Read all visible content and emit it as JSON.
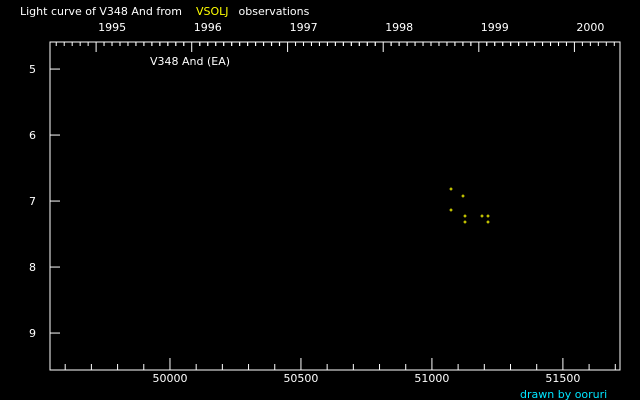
{
  "chart_data": {
    "type": "scatter",
    "title_prefix": "Light curve of V348 And from",
    "title_source": "VSOLJ",
    "title_suffix": "observations",
    "annotation": "V348 And (EA)",
    "credit": "drawn by ooruri",
    "xlim": [
      49542,
      51718
    ],
    "ylim": [
      4.59,
      9.56
    ],
    "y_inverted": true,
    "x_ticks": [
      50000,
      50500,
      51000,
      51500
    ],
    "x_tick_labels": [
      "50000",
      "50500",
      "51000",
      "51500"
    ],
    "y_ticks": [
      5,
      6,
      7,
      8,
      9
    ],
    "y_tick_labels": [
      "5",
      "6",
      "7",
      "8",
      "9"
    ],
    "top_axis_years": [
      {
        "label": "1995",
        "jd": 49718
      },
      {
        "label": "1996",
        "jd": 50083
      },
      {
        "label": "1997",
        "jd": 50449
      },
      {
        "label": "1998",
        "jd": 50814
      },
      {
        "label": "1999",
        "jd": 51179
      },
      {
        "label": "2000",
        "jd": 51544
      }
    ],
    "grid": false,
    "colors": {
      "background": "#000000",
      "axes": "#ffffff",
      "points": "#ffff00",
      "source": "#ffff00",
      "credit": "#00e5ff"
    },
    "points": [
      {
        "x": 51074,
        "y": 6.82
      },
      {
        "x": 51117,
        "y": 6.93
      },
      {
        "x": 51074,
        "y": 7.13
      },
      {
        "x": 51128,
        "y": 7.22
      },
      {
        "x": 51193,
        "y": 7.22
      },
      {
        "x": 51213,
        "y": 7.22
      },
      {
        "x": 51128,
        "y": 7.32
      },
      {
        "x": 51213,
        "y": 7.32
      }
    ]
  }
}
